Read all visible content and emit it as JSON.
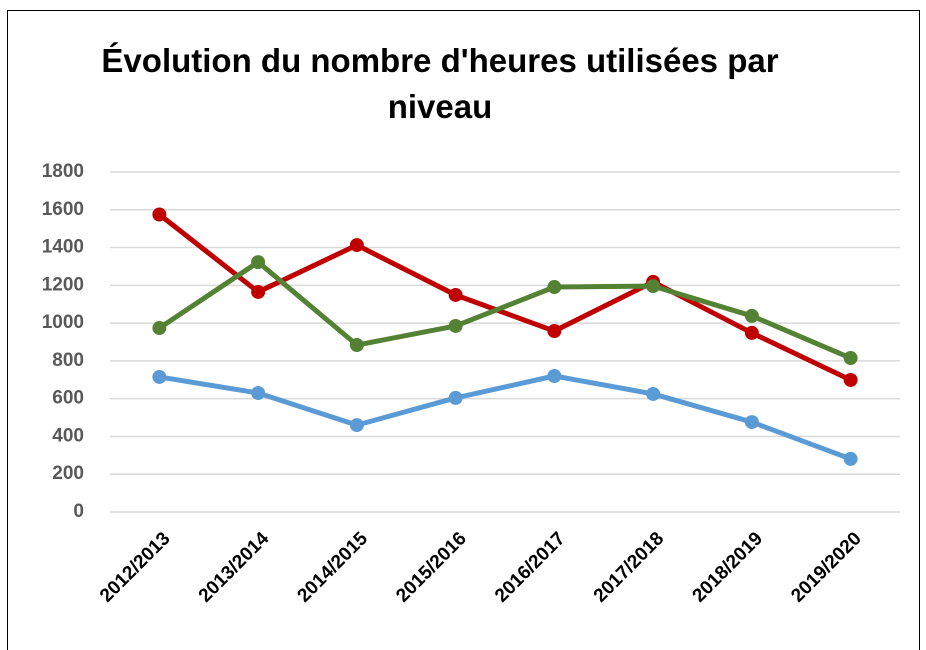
{
  "chart_data": {
    "type": "line",
    "title": "Évolution du nombre d'heures utilisées par niveau",
    "categories": [
      "2012/2013",
      "2013/2014",
      "2014/2015",
      "2015/2016",
      "2016/2017",
      "2017/2018",
      "2018/2019",
      "2019/2020"
    ],
    "series": [
      {
        "color": "#c00000",
        "values": [
          1575,
          1165,
          1413,
          1149,
          958,
          1218,
          948,
          699
        ]
      },
      {
        "color": "#548235",
        "values": [
          974,
          1323,
          884,
          985,
          1191,
          1196,
          1038,
          815
        ]
      },
      {
        "color": "#5b9bd5",
        "values": [
          715,
          630,
          460,
          604,
          720,
          625,
          476,
          281
        ]
      }
    ],
    "ylim": [
      0,
      1800
    ],
    "yticks": [
      0,
      200,
      400,
      600,
      800,
      1000,
      1200,
      1400,
      1600,
      1800
    ],
    "grid": true
  }
}
